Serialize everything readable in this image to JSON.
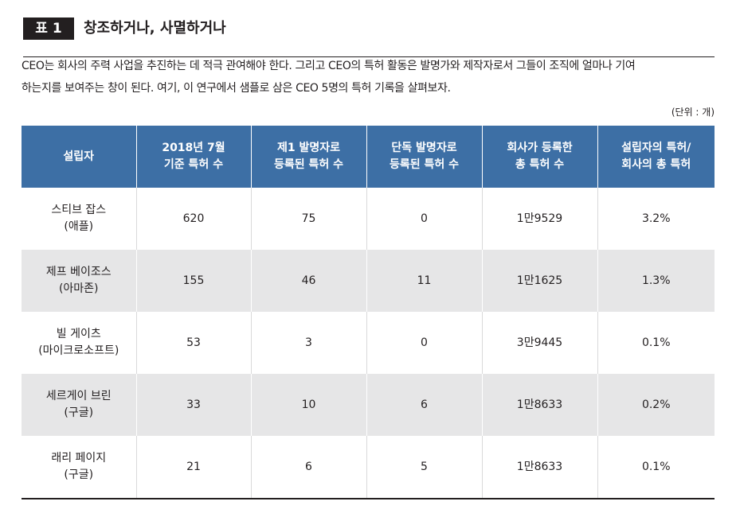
{
  "header": {
    "badge": "표 1",
    "title": "창조하거나, 사멸하거나"
  },
  "intro": {
    "line1": "CEO는 회사의 주력 사업을 추진하는 데 적극 관여해야 한다. 그리고 CEO의 특허 활동은 발명가와 제작자로서 그들이 조직에 얼마나 기여",
    "line2": "하는지를 보여주는 창이 된다. 여기, 이 연구에서 샘플로 삼은 CEO 5명의 특허 기록을 살펴보자."
  },
  "unit_note": "(단위 : 개)",
  "table": {
    "headers": [
      "설립자",
      "2018년 7월\n기준 특허 수",
      "제1 발명자로\n등록된 특허 수",
      "단독 발명자로\n등록된 특허 수",
      "회사가 등록한\n총 특허 수",
      "설립자의 특허/\n회사의 총 특허"
    ],
    "rows": [
      {
        "name": "스티브 잡스",
        "company": "(애플)",
        "patents_2018": "620",
        "first_inventor": "75",
        "sole_inventor": "0",
        "company_total": "1만9529",
        "ratio": "3.2%"
      },
      {
        "name": "제프 베이조스",
        "company": "(아마존)",
        "patents_2018": "155",
        "first_inventor": "46",
        "sole_inventor": "11",
        "company_total": "1만1625",
        "ratio": "1.3%"
      },
      {
        "name": "빌 게이츠",
        "company": "(마이크로소프트)",
        "patents_2018": "53",
        "first_inventor": "3",
        "sole_inventor": "0",
        "company_total": "3만9445",
        "ratio": "0.1%"
      },
      {
        "name": "세르게이 브린",
        "company": "(구글)",
        "patents_2018": "33",
        "first_inventor": "10",
        "sole_inventor": "6",
        "company_total": "1만8633",
        "ratio": "0.2%"
      },
      {
        "name": "래리 페이지",
        "company": "(구글)",
        "patents_2018": "21",
        "first_inventor": "6",
        "sole_inventor": "5",
        "company_total": "1만8633",
        "ratio": "0.1%"
      }
    ]
  }
}
